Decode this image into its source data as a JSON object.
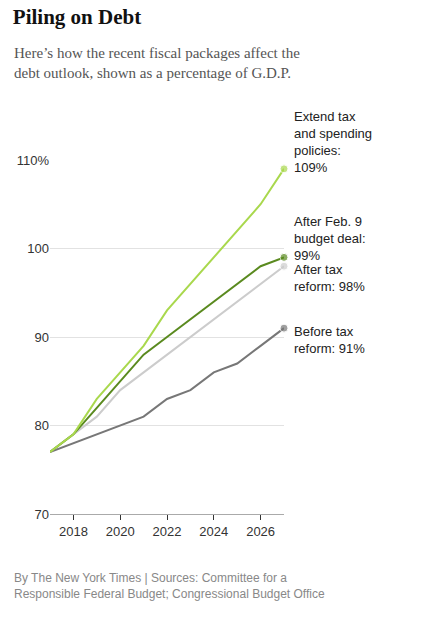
{
  "chart_data": {
    "type": "line",
    "title": "Piling on Debt",
    "subtitle": "Here’s how the recent fiscal packages affect the\ndebt outlook, shown as a percentage of G.D.P.",
    "source": "By The New York Times | Sources: Committee for a\nResponsible Federal Budget; Congressional Budget Office",
    "x": [
      2017,
      2018,
      2019,
      2020,
      2021,
      2022,
      2023,
      2024,
      2025,
      2026,
      2027
    ],
    "series": [
      {
        "label": "Before tax\nreform: 91%",
        "color": "#777777",
        "values": [
          77,
          78,
          79,
          80,
          81,
          83,
          84,
          86,
          87,
          89,
          91
        ]
      },
      {
        "label": "After tax\nreform: 98%",
        "color": "#cccccc",
        "values": [
          77,
          79,
          81,
          84,
          86,
          88,
          90,
          92,
          94,
          96,
          98
        ]
      },
      {
        "label": "After Feb. 9\nbudget deal:\n99%",
        "color": "#5a8a1f",
        "values": [
          77,
          79,
          82,
          85,
          88,
          90,
          92,
          94,
          96,
          98,
          99
        ]
      },
      {
        "label": "Extend tax\nand spending\npolicies:\n109%",
        "color": "#a9d84d",
        "values": [
          77,
          79,
          83,
          86,
          89,
          93,
          96,
          99,
          102,
          105,
          109
        ]
      }
    ],
    "xlim": [
      2017,
      2027
    ],
    "ylim": [
      70,
      110
    ],
    "xticks": [
      2018,
      2020,
      2022,
      2024,
      2026
    ],
    "yticks": [
      70,
      80,
      90,
      100,
      {
        "value": 110,
        "label": "110%"
      }
    ],
    "grid": true
  }
}
